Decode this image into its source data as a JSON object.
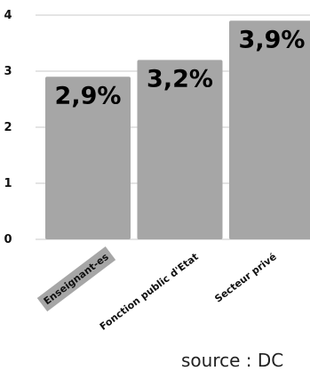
{
  "chart_data": {
    "type": "bar",
    "categories": [
      "Enseignant-es",
      "Fonction public d'Etat",
      "Secteur privé"
    ],
    "values": [
      2.9,
      3.2,
      3.9
    ],
    "value_labels": [
      "2,9%",
      "3,2%",
      "3,9%"
    ],
    "ylim": [
      0,
      4
    ],
    "yticks": [
      0,
      1,
      2,
      3,
      4
    ],
    "ytick_labels": [
      "0",
      "1",
      "2",
      "3",
      "4"
    ],
    "grid": true,
    "title": "",
    "xlabel": "",
    "ylabel": "",
    "bar_color": "#a6a6a6",
    "highlight_category": "Enseignant-es"
  },
  "source": "source : DC"
}
